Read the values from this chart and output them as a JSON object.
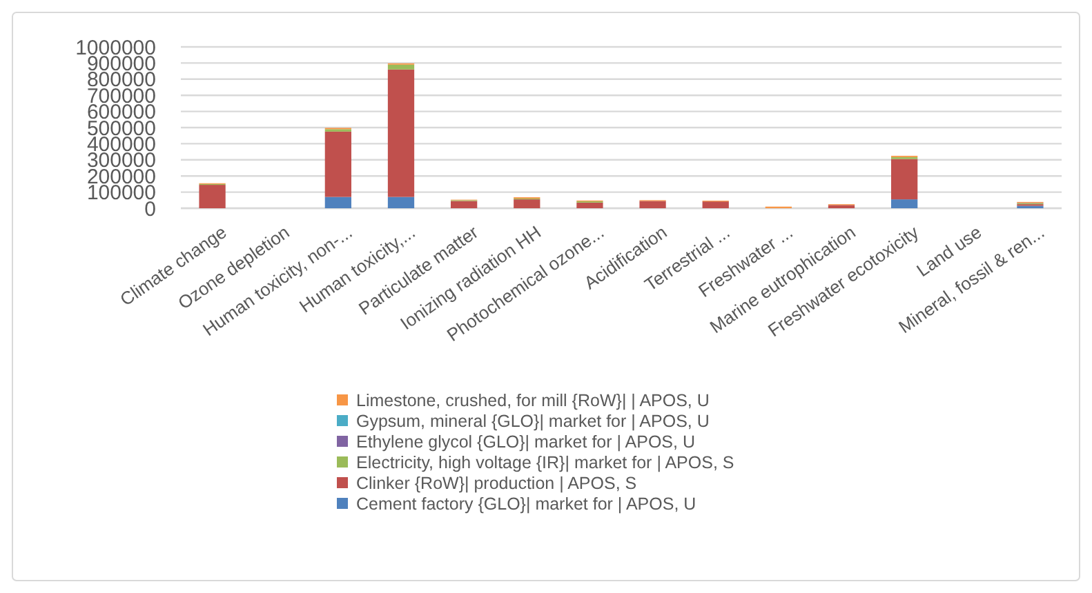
{
  "chart_data": {
    "type": "bar",
    "stacked": true,
    "grid": "y",
    "legend": "bottom",
    "categories": [
      "Climate change",
      "Ozone depletion",
      "Human toxicity, non-...",
      "Human toxicity,...",
      "Particulate matter",
      "Ionizing radiation HH",
      "Photochemical ozone...",
      "Acidification",
      "Terrestrial ...",
      "Freshwater ...",
      "Marine eutrophication",
      "Freshwater ecotoxicity",
      "Land use",
      "Mineral, fossil & ren..."
    ],
    "ylim": [
      0,
      1000000
    ],
    "yticks": [
      0,
      100000,
      200000,
      300000,
      400000,
      500000,
      600000,
      700000,
      800000,
      900000,
      1000000
    ],
    "series": [
      {
        "name": "Cement factory {GLO}| market for | APOS, U",
        "color": "#4f81bd",
        "values": [
          0,
          0,
          70000,
          70000,
          0,
          0,
          0,
          0,
          0,
          0,
          0,
          55000,
          0,
          15000
        ]
      },
      {
        "name": "Clinker {RoW}| production | APOS, S",
        "color": "#c0504d",
        "values": [
          145000,
          0,
          405000,
          790000,
          45000,
          55000,
          35000,
          45000,
          42000,
          0,
          20000,
          250000,
          0,
          10000
        ]
      },
      {
        "name": "Electricity, high voltage {IR}| market for | APOS, S",
        "color": "#9bbb59",
        "values": [
          5000,
          0,
          15000,
          30000,
          5000,
          5000,
          8000,
          0,
          0,
          0,
          0,
          12000,
          0,
          6000
        ]
      },
      {
        "name": "Ethylene glycol {GLO}| market for | APOS, U",
        "color": "#8064a2",
        "values": [
          0,
          0,
          0,
          0,
          0,
          0,
          0,
          0,
          0,
          0,
          0,
          0,
          0,
          2000
        ]
      },
      {
        "name": "Gypsum, mineral {GLO}| market for | APOS, U",
        "color": "#4bacc6",
        "values": [
          0,
          0,
          0,
          0,
          0,
          0,
          0,
          0,
          0,
          0,
          0,
          0,
          0,
          0
        ]
      },
      {
        "name": "Limestone, crushed, for mill {RoW}| | APOS, U",
        "color": "#f79646",
        "values": [
          5000,
          0,
          8000,
          8000,
          3000,
          8000,
          5000,
          5000,
          5000,
          10000,
          5000,
          8000,
          0,
          6000
        ]
      }
    ]
  }
}
